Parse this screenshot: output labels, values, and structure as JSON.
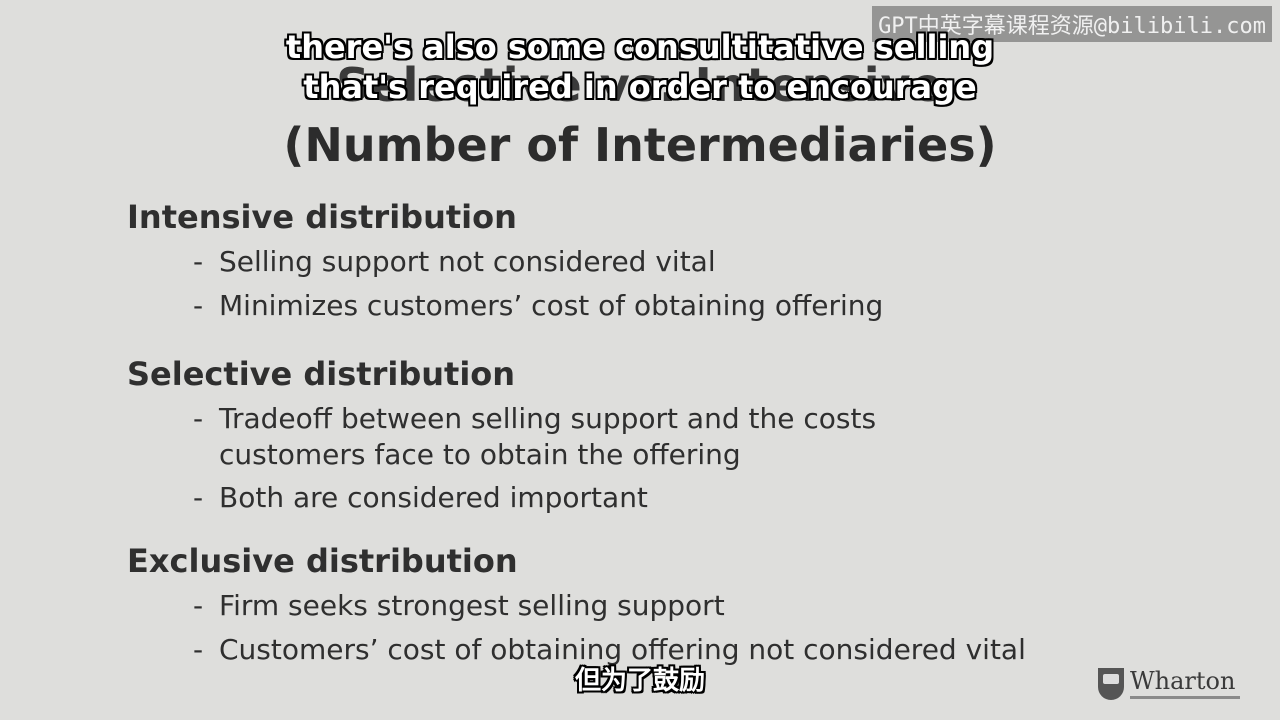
{
  "watermark": "GPT中英字幕课程资源@bilibili.com",
  "slide": {
    "title_line1": "Selective vs. Intensive",
    "title_line2": "(Number of Intermediaries)",
    "sections": [
      {
        "heading": "Intensive distribution",
        "bullets": [
          [
            "Selling support not considered vital"
          ],
          [
            "Minimizes customers’ cost of obtaining offering"
          ]
        ]
      },
      {
        "heading": "Selective distribution",
        "bullets": [
          [
            "Tradeoff between selling support and the costs",
            "customers face to obtain the offering"
          ],
          [
            "Both are considered important"
          ]
        ]
      },
      {
        "heading": "Exclusive distribution",
        "bullets": [
          [
            "Firm seeks strongest selling support"
          ],
          [
            "Customers’ cost of obtaining offering not considered vital"
          ]
        ]
      }
    ]
  },
  "subtitles": {
    "english_line1": "there's also some consultitative selling",
    "english_line2": "that's required in order to encourage",
    "chinese": "但为了鼓励"
  },
  "logo": {
    "name": "Wharton",
    "icon": "penn-shield-icon"
  }
}
